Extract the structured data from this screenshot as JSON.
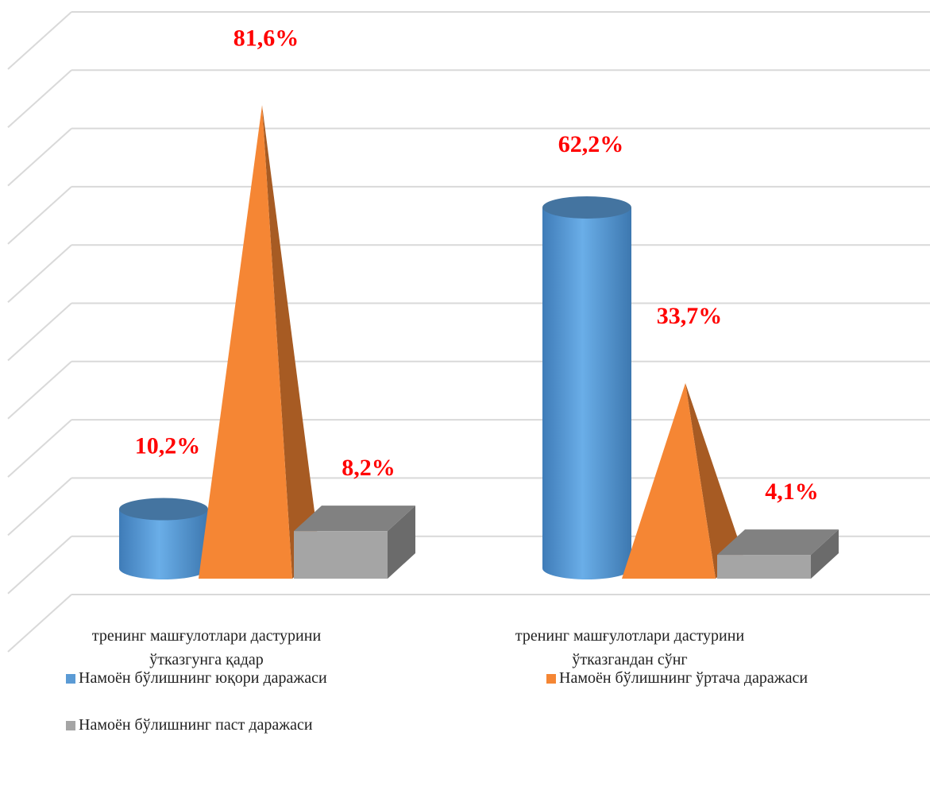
{
  "chart_data": {
    "type": "bar3d",
    "categories": [
      "тренинг машғулотлари дастурини ўтказгунга қадар",
      "тренинг машғулотлари дастурини ўтказгандан сўнг"
    ],
    "series": [
      {
        "name": "Намоён бўлишнинг юқори даражаси",
        "color": "#5b9bd5",
        "shape": "cylinder",
        "values": [
          10.2,
          62.2
        ],
        "value_labels": [
          "10,2%",
          "62,2%"
        ]
      },
      {
        "name": "Намоён бўлишнинг ўртача даражаси",
        "color": "#f58634",
        "shape": "pyramid",
        "values": [
          81.6,
          33.7
        ],
        "value_labels": [
          "81,6%",
          "33,7%"
        ]
      },
      {
        "name": "Намоён бўлишнинг паст даражаси",
        "color": "#a5a5a5",
        "shape": "box",
        "values": [
          8.2,
          4.1
        ],
        "value_labels": [
          "8,2%",
          "4,1%"
        ]
      }
    ],
    "ylim": [
      0,
      100
    ],
    "yticks": [
      0,
      10,
      20,
      30,
      40,
      50,
      60,
      70,
      80,
      90,
      100
    ],
    "grid": true,
    "legend": "bottom"
  }
}
